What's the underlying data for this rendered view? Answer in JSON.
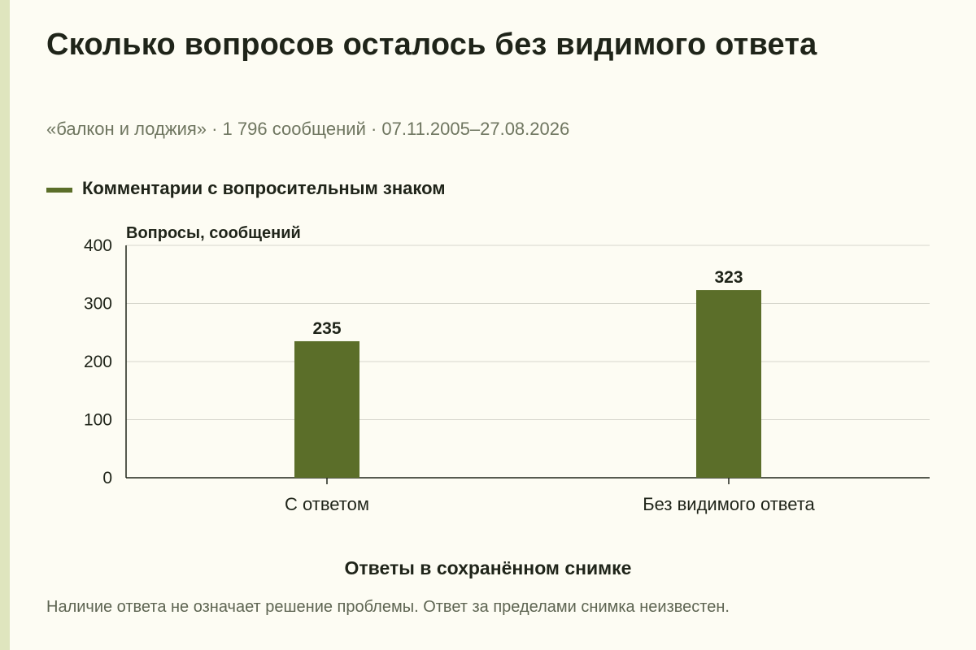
{
  "title": "Сколько вопросов осталось без видимого ответа",
  "subtitle": "«балкон и лоджия» · 1 796 сообщений · 07.11.2005–27.08.2026",
  "note": "Наличие ответа не означает решение проблемы. Ответ за пределами снимка неизвестен.",
  "colors": {
    "bar": "#5b6e29",
    "grid": "#d6d6cc",
    "axis": "#1f2419"
  },
  "chart_data": {
    "type": "bar",
    "categories": [
      "С ответом",
      "Без видимого ответа"
    ],
    "series": [
      {
        "name": "Комментарии с вопросительным знаком",
        "values": [
          235,
          323
        ]
      }
    ],
    "xlabel": "Ответы в сохранённом снимке",
    "ylabel": "Вопросы, сообщений",
    "ylim": [
      0,
      400
    ],
    "yticks": [
      0,
      100,
      200,
      300,
      400
    ],
    "grid": true,
    "legend_position": "top-left",
    "data_labels": true
  }
}
